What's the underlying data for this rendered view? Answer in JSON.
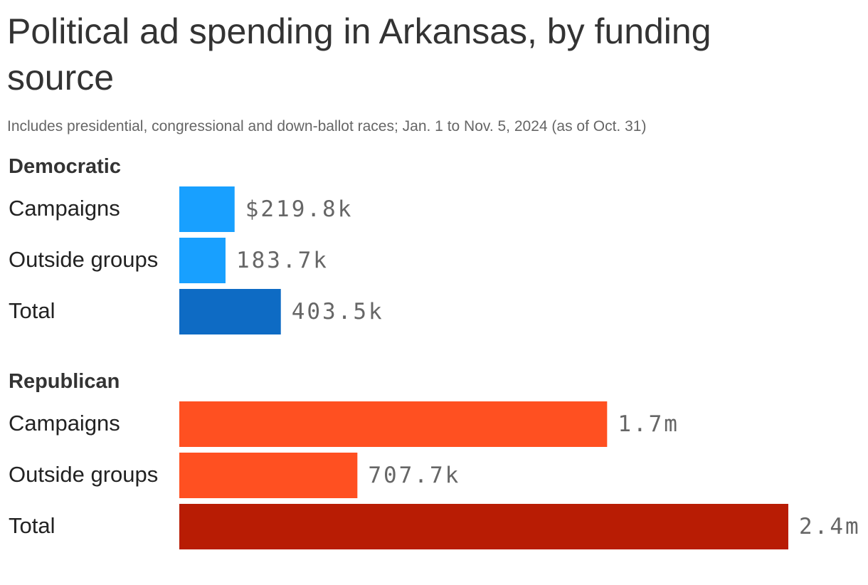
{
  "chart_data": {
    "type": "bar",
    "title": "Political ad spending in Arkansas, by funding source",
    "subtitle": "Includes presidential, congressional and down-ballot races; Jan. 1 to Nov. 5, 2024 (as of Oct. 31)",
    "unit": "USD",
    "groups": [
      {
        "name": "Democratic",
        "bars": [
          {
            "category": "Campaigns",
            "value": 219800,
            "label": "$219.8k",
            "color": "#18a0ff"
          },
          {
            "category": "Outside groups",
            "value": 183700,
            "label": "183.7k",
            "color": "#18a0ff"
          },
          {
            "category": "Total",
            "value": 403500,
            "label": "403.5k",
            "color": "#0e6bc4"
          }
        ]
      },
      {
        "name": "Republican",
        "bars": [
          {
            "category": "Campaigns",
            "value": 1700000,
            "label": "1.7m",
            "color": "#ff5021"
          },
          {
            "category": "Outside groups",
            "value": 707700,
            "label": "707.7k",
            "color": "#ff5021"
          },
          {
            "category": "Total",
            "value": 2420000,
            "label": "2.4m",
            "color": "#b81c04"
          }
        ]
      }
    ],
    "xlim": [
      0,
      2420000
    ],
    "grid": false
  }
}
